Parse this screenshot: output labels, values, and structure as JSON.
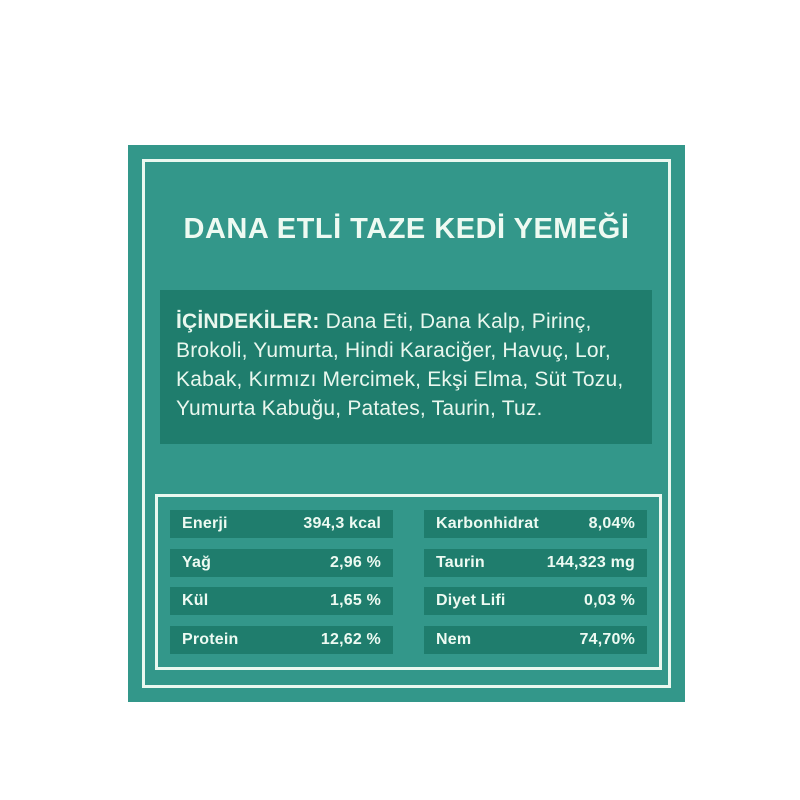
{
  "label": {
    "title": "DANA ETLİ TAZE KEDİ YEMEĞİ",
    "ingredients": {
      "heading": "İÇİNDEKİLER:",
      "text": " Dana Eti, Dana Kalp, Pirinç, Brokoli, Yumurta, Hindi Karaciğer, Havuç, Lor, Kabak, Kırmızı Mercimek, Ekşi Elma, Süt Tozu, Yumurta Kabuğu, Patates, Taurin, Tuz."
    },
    "nutrition": {
      "columns": [
        {
          "rows": [
            {
              "label": "Enerji",
              "value": "394,3 kcal"
            },
            {
              "label": "Yağ",
              "value": "2,96 %"
            },
            {
              "label": "Kül",
              "value": "1,65 %"
            },
            {
              "label": "Protein",
              "value": "12,62 %"
            }
          ]
        },
        {
          "rows": [
            {
              "label": "Karbonhidrat",
              "value": "8,04%"
            },
            {
              "label": "Taurin",
              "value": "144,323 mg"
            },
            {
              "label": "Diyet Lifi",
              "value": "0,03 %"
            },
            {
              "label": "Nem",
              "value": "74,70%"
            }
          ]
        }
      ]
    },
    "colors": {
      "card_background": "#33978a",
      "panel_background": "#1f7d6d",
      "text_cream": "#eefaf2",
      "page_background": "#ffffff"
    }
  }
}
